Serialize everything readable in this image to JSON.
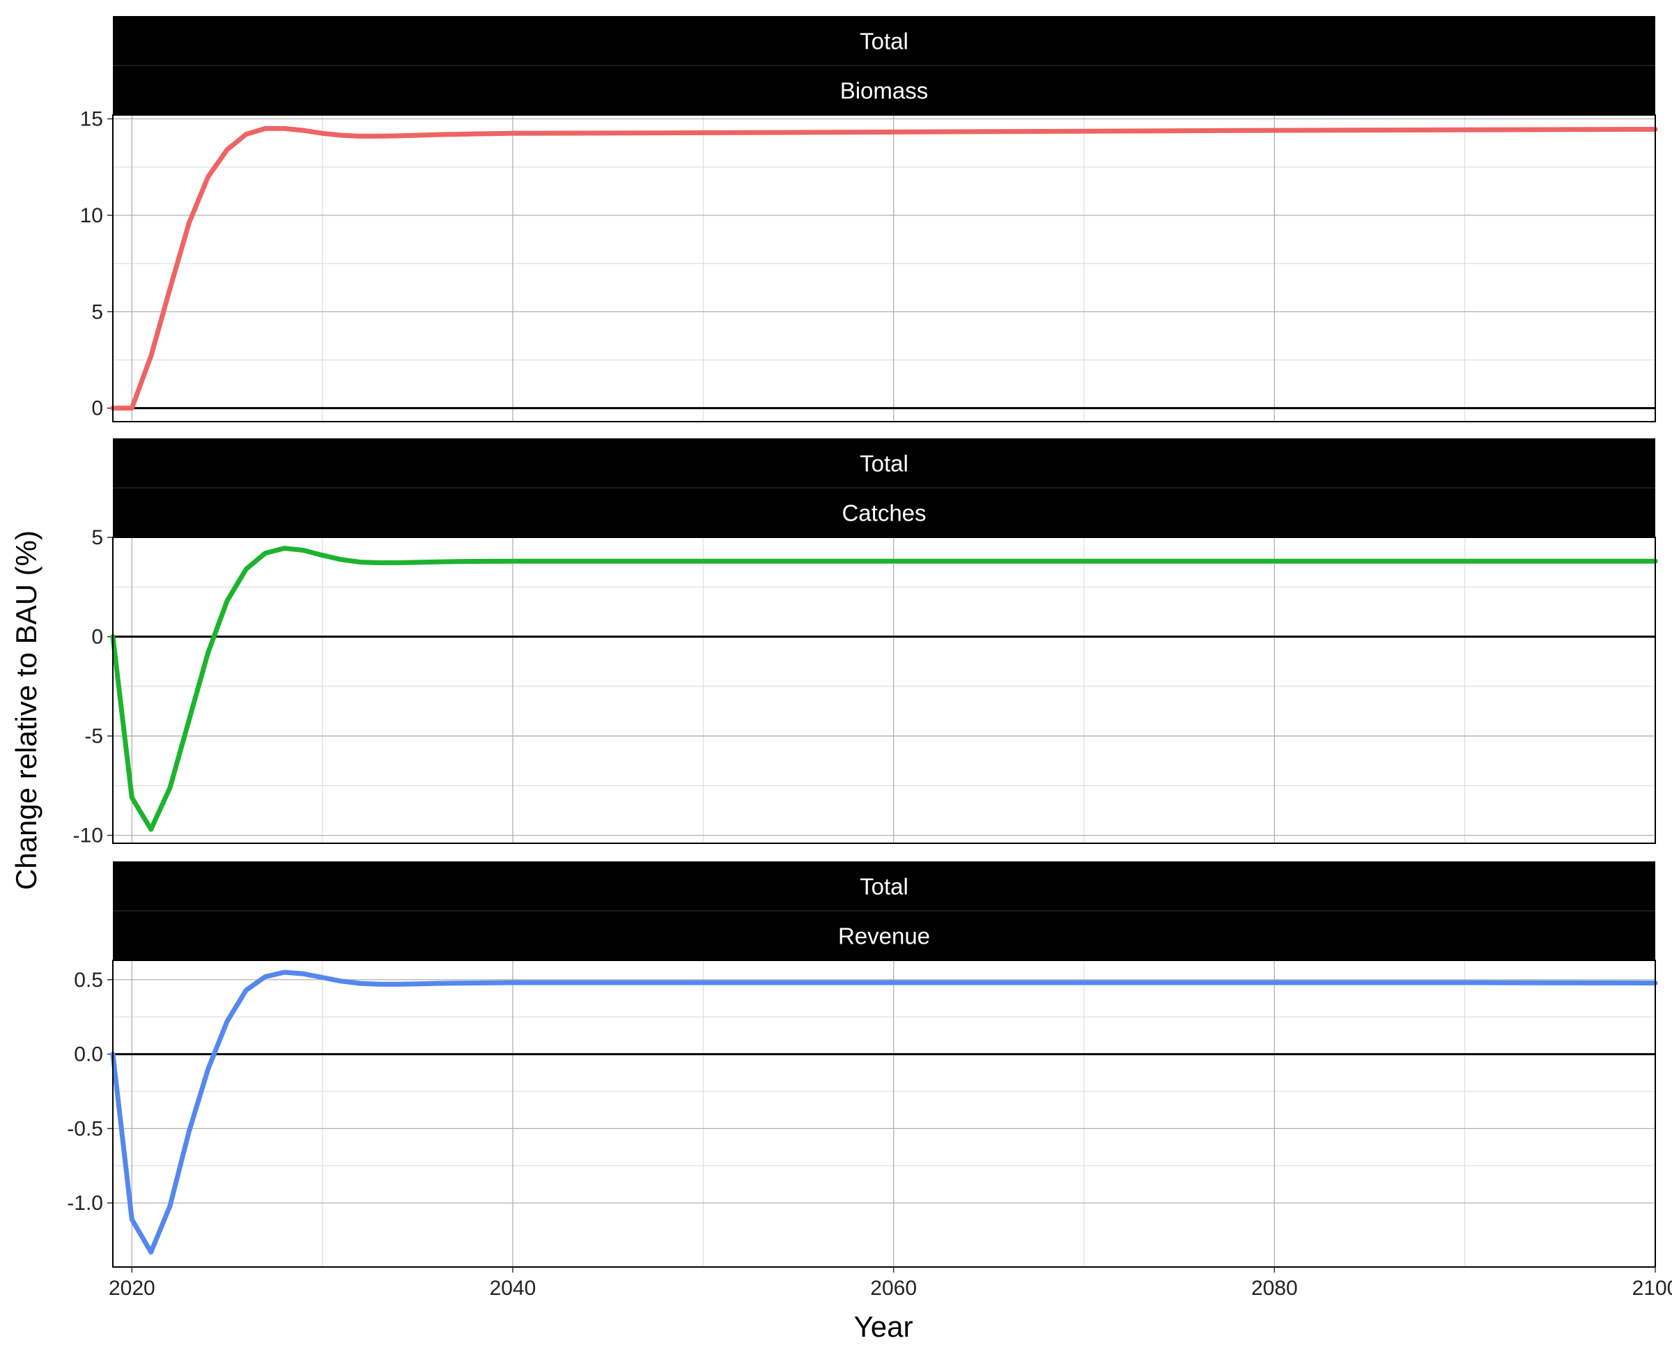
{
  "ylabel": "Change relative to BAU (%)",
  "xlabel": "Year",
  "chart_data": {
    "type": "line",
    "x_domain": [
      2019,
      2100
    ],
    "x_ticks": [
      2020,
      2040,
      2060,
      2080,
      2100
    ],
    "x_tick_labels": [
      "2020",
      "2040",
      "2060",
      "2080",
      "2100"
    ],
    "xlabel": "Year",
    "ylabel": "Change relative to BAU (%)",
    "grid": true,
    "legend": "none",
    "panels": [
      {
        "strip1": "Total",
        "strip2": "Biomass",
        "color": "#ee6464",
        "ylim": [
          -0.7,
          15.2
        ],
        "y_ticks": [
          0,
          5,
          10,
          15
        ],
        "y_tick_labels": [
          "0",
          "5",
          "10",
          "15"
        ],
        "x": [
          2019,
          2020,
          2021,
          2022,
          2023,
          2024,
          2025,
          2026,
          2027,
          2028,
          2029,
          2030,
          2031,
          2032,
          2033,
          2034,
          2035,
          2036,
          2037,
          2038,
          2040,
          2050,
          2060,
          2070,
          2080,
          2090,
          2100
        ],
        "y": [
          0,
          0,
          2.7,
          6.2,
          9.6,
          12.0,
          13.4,
          14.2,
          14.5,
          14.5,
          14.4,
          14.25,
          14.15,
          14.1,
          14.1,
          14.12,
          14.15,
          14.18,
          14.2,
          14.22,
          14.25,
          14.28,
          14.32,
          14.36,
          14.4,
          14.43,
          14.46
        ]
      },
      {
        "strip1": "Total",
        "strip2": "Catches",
        "color": "#1db32e",
        "ylim": [
          -10.4,
          5.0
        ],
        "y_ticks": [
          -10,
          -5,
          0,
          5
        ],
        "y_tick_labels": [
          "-10",
          "-5",
          "0",
          "5"
        ],
        "x": [
          2019,
          2020,
          2021,
          2022,
          2023,
          2024,
          2025,
          2026,
          2027,
          2028,
          2029,
          2030,
          2031,
          2032,
          2033,
          2034,
          2035,
          2036,
          2037,
          2038,
          2040,
          2050,
          2060,
          2070,
          2080,
          2090,
          2100
        ],
        "y": [
          0,
          -8.1,
          -9.7,
          -7.6,
          -4.2,
          -0.8,
          1.8,
          3.4,
          4.2,
          4.45,
          4.35,
          4.1,
          3.88,
          3.75,
          3.72,
          3.72,
          3.74,
          3.76,
          3.78,
          3.79,
          3.8,
          3.8,
          3.8,
          3.8,
          3.8,
          3.8,
          3.8
        ]
      },
      {
        "strip1": "Total",
        "strip2": "Revenue",
        "color": "#5588ee",
        "ylim": [
          -1.43,
          0.63
        ],
        "y_ticks": [
          -1.0,
          -0.5,
          0.0,
          0.5
        ],
        "y_tick_labels": [
          "-1.0",
          "-0.5",
          "0.0",
          "0.5"
        ],
        "x": [
          2019,
          2020,
          2021,
          2022,
          2023,
          2024,
          2025,
          2026,
          2027,
          2028,
          2029,
          2030,
          2031,
          2032,
          2033,
          2034,
          2035,
          2036,
          2037,
          2038,
          2040,
          2050,
          2060,
          2070,
          2080,
          2090,
          2100
        ],
        "y": [
          0,
          -1.11,
          -1.33,
          -1.02,
          -0.52,
          -0.1,
          0.22,
          0.43,
          0.52,
          0.55,
          0.54,
          0.515,
          0.49,
          0.475,
          0.47,
          0.47,
          0.472,
          0.475,
          0.477,
          0.478,
          0.48,
          0.48,
          0.48,
          0.48,
          0.48,
          0.48,
          0.478
        ]
      }
    ]
  }
}
